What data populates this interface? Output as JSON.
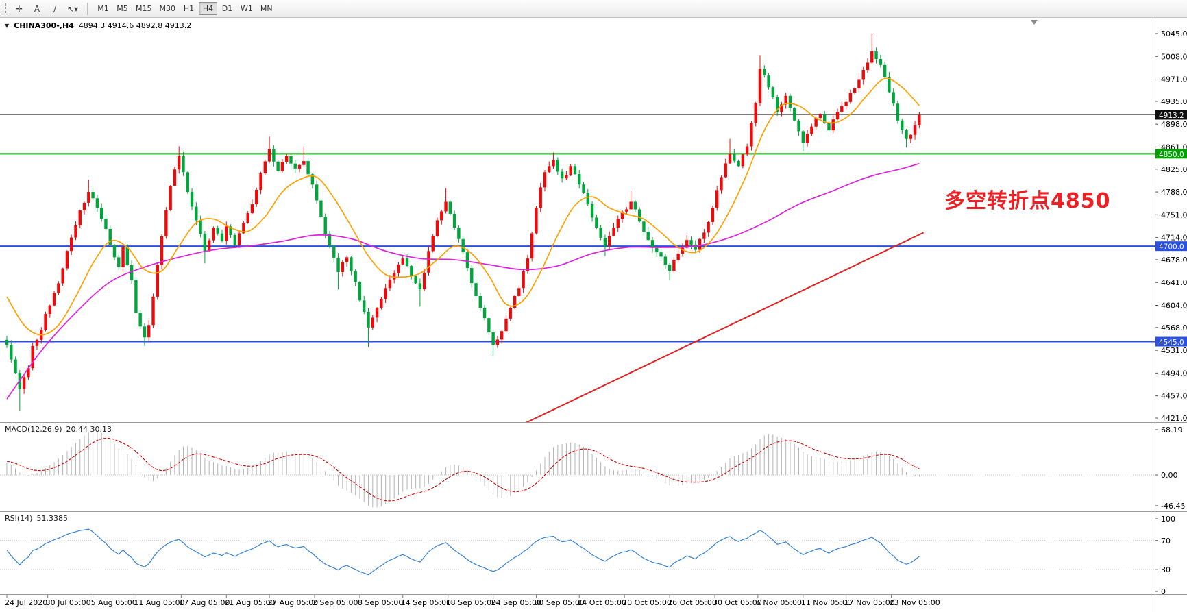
{
  "toolbar": {
    "tools": [
      {
        "name": "crosshair-tool",
        "glyph": "✛"
      },
      {
        "name": "text-tool",
        "glyph": "A"
      },
      {
        "name": "trendline-tool",
        "glyph": "∕"
      },
      {
        "name": "arrows-tool",
        "glyph": "↖",
        "caret": "▾"
      }
    ],
    "timeframes": [
      "M1",
      "M5",
      "M15",
      "M30",
      "H1",
      "H4",
      "D1",
      "W1",
      "MN"
    ],
    "active_timeframe": "H4"
  },
  "chart": {
    "dropdown_icon": "▼",
    "symbol_label": "CHINA300-,H4",
    "ohlc_label": "4894.3 4914.6 4892.8 4913.2",
    "annotation": {
      "text": "多空转折点4850",
      "color": "#ed2024"
    }
  },
  "macd": {
    "name": "MACD(12,26,9)",
    "values": "20.44 30.13"
  },
  "rsi": {
    "name": "RSI(14)",
    "value": "51.3385"
  },
  "chart_data": {
    "type": "candlestick",
    "symbol": "CHINA300-",
    "timeframe": "H4",
    "last_bar_ohlc": {
      "open": 4894.3,
      "high": 4914.6,
      "low": 4892.8,
      "close": 4913.2
    },
    "colors": {
      "bull": "#ea0c0c",
      "bear": "#00a63c",
      "ma_fast": "#ffa000",
      "ma_slow": "#dd22dd",
      "trendline": "#e02222",
      "macd_hist": "#b4b4b4",
      "macd_signal": "#d40000",
      "rsi_line": "#3583d6",
      "current_price_line": "#7a7a7a"
    },
    "price_axis": {
      "top": 5045.0,
      "bottom": 4421.0,
      "ticks": [
        5045.0,
        5008.0,
        4971.0,
        4935.0,
        4898.0,
        4861.0,
        4825.0,
        4788.0,
        4751.0,
        4714.0,
        4678.0,
        4641.0,
        4604.0,
        4568.0,
        4531.0,
        4494.0,
        4457.0,
        4421.0
      ]
    },
    "price_markers": [
      {
        "label": "4913.2",
        "price": 4913.2,
        "bg": "#101010"
      },
      {
        "label": "4850.0",
        "price": 4850.0,
        "bg": "#00a000"
      },
      {
        "label": "4700.0",
        "price": 4700.0,
        "bg": "#2b50df"
      },
      {
        "label": "4545.0",
        "price": 4545.0,
        "bg": "#2b50df"
      }
    ],
    "hlines": [
      {
        "name": "current-price-line",
        "price": 4913.2,
        "color": "#7a7a7a",
        "width": 1
      },
      {
        "name": "support-line-4850",
        "price": 4850.0,
        "color": "#00a000",
        "width": 2
      },
      {
        "name": "support-line-4700",
        "price": 4700.0,
        "color": "#2b50df",
        "width": 2
      },
      {
        "name": "support-line-4545",
        "price": 4545.0,
        "color": "#2b50df",
        "width": 2
      }
    ],
    "trendline": {
      "color": "#e02222",
      "from": {
        "index": 119,
        "price": 4408
      },
      "to": {
        "index": 213,
        "price": 4722
      }
    },
    "time_axis": {
      "labels": [
        {
          "i": 0,
          "label": "24 Jul 2020"
        },
        {
          "i": 9.5,
          "label": "30 Jul 05:00"
        },
        {
          "i": 20,
          "label": "5 Aug 05:00"
        },
        {
          "i": 30,
          "label": "11 Aug 05:00"
        },
        {
          "i": 40.5,
          "label": "17 Aug 05:00"
        },
        {
          "i": 51,
          "label": "21 Aug 05:00"
        },
        {
          "i": 61,
          "label": "27 Aug 05:00"
        },
        {
          "i": 71.5,
          "label": "2 Sep 05:00"
        },
        {
          "i": 82,
          "label": "8 Sep 05:00"
        },
        {
          "i": 92,
          "label": "14 Sep 05:00"
        },
        {
          "i": 102.5,
          "label": "18 Sep 05:00"
        },
        {
          "i": 113,
          "label": "24 Sep 05:00"
        },
        {
          "i": 123,
          "label": "30 Sep 05:00"
        },
        {
          "i": 133,
          "label": "14 Oct 05:00"
        },
        {
          "i": 143.5,
          "label": "20 Oct 05:00"
        },
        {
          "i": 154,
          "label": "26 Oct 05:00"
        },
        {
          "i": 164.5,
          "label": "30 Oct 05:00"
        },
        {
          "i": 174.5,
          "label": "5 Nov 05:00"
        },
        {
          "i": 185,
          "label": "11 Nov 05:00"
        },
        {
          "i": 195,
          "label": "17 Nov 05:00"
        },
        {
          "i": 205.5,
          "label": "23 Nov 05:00"
        }
      ]
    },
    "candles": {
      "count": 213,
      "anchors": [
        [
          0,
          4540
        ],
        [
          1,
          4516
        ],
        [
          3,
          4468,
          null,
          4432
        ],
        [
          5,
          4502
        ],
        [
          6,
          4538
        ],
        [
          8,
          4564
        ],
        [
          9,
          4590
        ],
        [
          11,
          4624
        ],
        [
          13,
          4664
        ],
        [
          15,
          4714
        ],
        [
          17,
          4758
        ],
        [
          19,
          4788,
          4808,
          null
        ],
        [
          21,
          4762
        ],
        [
          23,
          4728
        ],
        [
          25,
          4682
        ],
        [
          26,
          4666
        ],
        [
          27,
          4698
        ],
        [
          29,
          4645
        ],
        [
          30,
          4592
        ],
        [
          32,
          4552,
          null,
          4538
        ],
        [
          33,
          4572
        ],
        [
          34,
          4618
        ],
        [
          36,
          4716
        ],
        [
          38,
          4798
        ],
        [
          40,
          4846,
          4862,
          null
        ],
        [
          41,
          4820
        ],
        [
          42,
          4788
        ],
        [
          44,
          4742
        ],
        [
          46,
          4692,
          null,
          4672
        ],
        [
          48,
          4730
        ],
        [
          50,
          4708
        ],
        [
          51,
          4732
        ],
        [
          53,
          4702
        ],
        [
          55,
          4738
        ],
        [
          57,
          4768
        ],
        [
          59,
          4818
        ],
        [
          61,
          4858,
          4878,
          null
        ],
        [
          63,
          4822
        ],
        [
          65,
          4846
        ],
        [
          67,
          4826
        ],
        [
          69,
          4838,
          4862,
          null
        ],
        [
          71,
          4800
        ],
        [
          73,
          4748
        ],
        [
          75,
          4700
        ],
        [
          77,
          4658,
          null,
          4630
        ],
        [
          79,
          4682
        ],
        [
          81,
          4642
        ],
        [
          82,
          4612
        ],
        [
          84,
          4568,
          null,
          4536
        ],
        [
          86,
          4600
        ],
        [
          88,
          4632
        ],
        [
          90,
          4656
        ],
        [
          92,
          4680
        ],
        [
          94,
          4652
        ],
        [
          96,
          4630,
          null,
          4602
        ],
        [
          98,
          4692
        ],
        [
          100,
          4742
        ],
        [
          102,
          4772,
          4794,
          null
        ],
        [
          104,
          4730
        ],
        [
          106,
          4690
        ],
        [
          108,
          4640
        ],
        [
          110,
          4600
        ],
        [
          112,
          4560
        ],
        [
          113,
          4540,
          null,
          4522
        ],
        [
          115,
          4562
        ],
        [
          117,
          4600
        ],
        [
          119,
          4632
        ],
        [
          121,
          4680
        ],
        [
          123,
          4762
        ],
        [
          125,
          4820
        ],
        [
          127,
          4840,
          4852,
          null
        ],
        [
          129,
          4810
        ],
        [
          131,
          4830
        ],
        [
          133,
          4800
        ],
        [
          135,
          4768
        ],
        [
          137,
          4730
        ],
        [
          139,
          4700,
          null,
          4684
        ],
        [
          141,
          4730
        ],
        [
          143,
          4756
        ],
        [
          145,
          4772,
          4790,
          null
        ],
        [
          147,
          4740
        ],
        [
          149,
          4710
        ],
        [
          151,
          4690
        ],
        [
          153,
          4670
        ],
        [
          154,
          4660,
          null,
          4645
        ],
        [
          156,
          4688
        ],
        [
          158,
          4710
        ],
        [
          160,
          4694
        ],
        [
          162,
          4722
        ],
        [
          164,
          4762
        ],
        [
          166,
          4812
        ],
        [
          168,
          4850,
          4874,
          null
        ],
        [
          170,
          4830
        ],
        [
          172,
          4862
        ],
        [
          174,
          4932
        ],
        [
          175,
          4988,
          5010,
          null
        ],
        [
          177,
          4958
        ],
        [
          179,
          4918
        ],
        [
          181,
          4944
        ],
        [
          183,
          4904
        ],
        [
          185,
          4868,
          null,
          4854
        ],
        [
          187,
          4894
        ],
        [
          189,
          4914
        ],
        [
          191,
          4888
        ],
        [
          193,
          4918
        ],
        [
          195,
          4934
        ],
        [
          197,
          4956
        ],
        [
          199,
          4986
        ],
        [
          201,
          5016,
          5045,
          null
        ],
        [
          203,
          4994
        ],
        [
          205,
          4950
        ],
        [
          207,
          4904
        ],
        [
          209,
          4874,
          null,
          4860
        ],
        [
          211,
          4896
        ],
        [
          212,
          4913.2
        ]
      ]
    },
    "ma_fast": {
      "period_hint": 20,
      "points": [
        [
          0,
          4618
        ],
        [
          4,
          4572
        ],
        [
          8,
          4556
        ],
        [
          12,
          4572
        ],
        [
          16,
          4618
        ],
        [
          20,
          4672
        ],
        [
          24,
          4708
        ],
        [
          28,
          4698
        ],
        [
          32,
          4662
        ],
        [
          36,
          4660
        ],
        [
          40,
          4700
        ],
        [
          44,
          4738
        ],
        [
          48,
          4744
        ],
        [
          52,
          4730
        ],
        [
          56,
          4724
        ],
        [
          60,
          4748
        ],
        [
          64,
          4788
        ],
        [
          68,
          4808
        ],
        [
          72,
          4812
        ],
        [
          76,
          4778
        ],
        [
          80,
          4732
        ],
        [
          84,
          4684
        ],
        [
          88,
          4654
        ],
        [
          92,
          4650
        ],
        [
          96,
          4656
        ],
        [
          100,
          4678
        ],
        [
          104,
          4700
        ],
        [
          108,
          4688
        ],
        [
          112,
          4652
        ],
        [
          116,
          4606
        ],
        [
          120,
          4612
        ],
        [
          124,
          4658
        ],
        [
          128,
          4718
        ],
        [
          132,
          4766
        ],
        [
          136,
          4780
        ],
        [
          140,
          4762
        ],
        [
          144,
          4752
        ],
        [
          148,
          4744
        ],
        [
          152,
          4722
        ],
        [
          156,
          4698
        ],
        [
          160,
          4690
        ],
        [
          164,
          4712
        ],
        [
          168,
          4758
        ],
        [
          172,
          4818
        ],
        [
          176,
          4888
        ],
        [
          180,
          4928
        ],
        [
          184,
          4928
        ],
        [
          188,
          4908
        ],
        [
          192,
          4900
        ],
        [
          196,
          4914
        ],
        [
          200,
          4946
        ],
        [
          204,
          4972
        ],
        [
          208,
          4958
        ],
        [
          212,
          4928
        ]
      ]
    },
    "ma_slow": {
      "period_hint": 60,
      "points": [
        [
          0,
          4452
        ],
        [
          8,
          4530
        ],
        [
          16,
          4592
        ],
        [
          24,
          4642
        ],
        [
          32,
          4666
        ],
        [
          40,
          4682
        ],
        [
          48,
          4694
        ],
        [
          56,
          4700
        ],
        [
          64,
          4708
        ],
        [
          72,
          4718
        ],
        [
          80,
          4712
        ],
        [
          88,
          4692
        ],
        [
          96,
          4680
        ],
        [
          104,
          4678
        ],
        [
          112,
          4670
        ],
        [
          120,
          4662
        ],
        [
          128,
          4668
        ],
        [
          136,
          4688
        ],
        [
          144,
          4698
        ],
        [
          152,
          4698
        ],
        [
          160,
          4700
        ],
        [
          168,
          4714
        ],
        [
          176,
          4738
        ],
        [
          184,
          4768
        ],
        [
          192,
          4790
        ],
        [
          200,
          4812
        ],
        [
          208,
          4826
        ],
        [
          212,
          4834
        ]
      ]
    },
    "macd_panel": {
      "params": {
        "fast": 12,
        "slow": 26,
        "signal": 9
      },
      "main": 20.44,
      "signal": 30.13,
      "ticks": [
        {
          "v": 68.19,
          "label": "68.19"
        },
        {
          "v": 0,
          "label": "0.00"
        },
        {
          "v": -46.45,
          "label": "-46.45"
        }
      ]
    },
    "rsi_panel": {
      "period": 14,
      "value": 51.3385,
      "ticks": [
        {
          "v": 100,
          "label": "100"
        },
        {
          "v": 70,
          "label": "70"
        },
        {
          "v": 30,
          "label": "30"
        },
        {
          "v": 0,
          "label": "0"
        }
      ]
    }
  }
}
